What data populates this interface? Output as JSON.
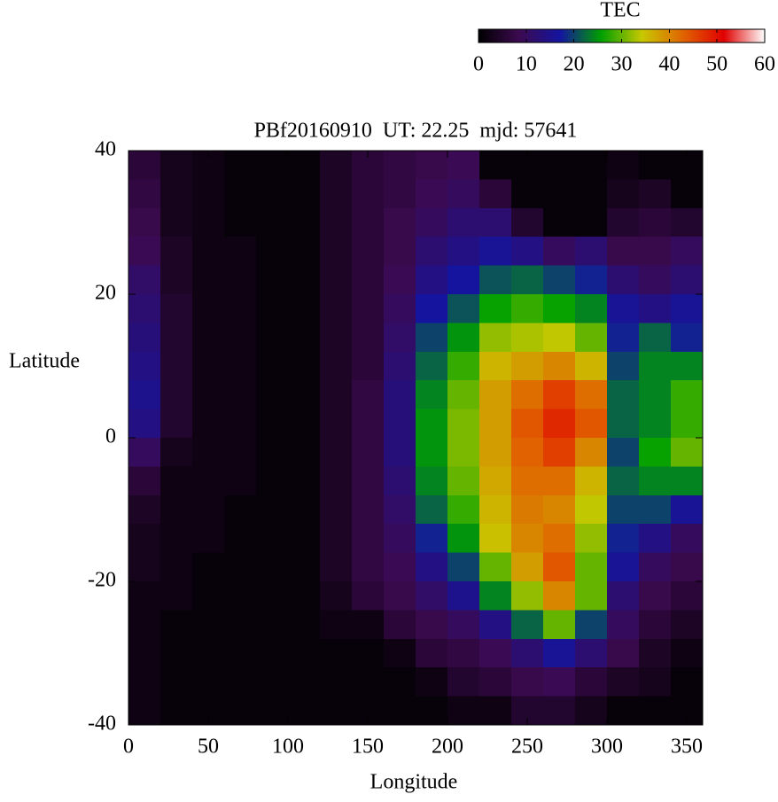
{
  "chart_data": {
    "type": "heatmap",
    "title": "PBf20160910  UT: 22.25  mjd: 57641",
    "x_label": "Longitude",
    "y_label": "Latitude",
    "colorbar_label": "TEC",
    "xlim": [
      0,
      360
    ],
    "xticks": [
      0,
      50,
      100,
      150,
      200,
      250,
      300,
      350
    ],
    "ylim": [
      -40,
      40
    ],
    "yticks": [
      -40,
      -20,
      0,
      20,
      40
    ],
    "zlim": [
      0,
      60
    ],
    "zticks": [
      0,
      10,
      20,
      30,
      40,
      50,
      60
    ],
    "colormap": [
      "#000000",
      "#3c0a50",
      "#1414a0",
      "#00a000",
      "#c8c800",
      "#e06400",
      "#e00000",
      "#ffffff"
    ],
    "x": [
      10,
      30,
      50,
      70,
      90,
      110,
      130,
      150,
      170,
      190,
      210,
      230,
      250,
      270,
      290,
      310,
      330,
      350
    ],
    "y": [
      38,
      34,
      30,
      26,
      22,
      18,
      14,
      10,
      6,
      2,
      -2,
      -6,
      -10,
      -14,
      -18,
      -22,
      -26,
      -30,
      -34,
      -38
    ],
    "z": [
      [
        6,
        3,
        2,
        1,
        1,
        1,
        4,
        6,
        7,
        8,
        9,
        1,
        1,
        1,
        1,
        2,
        1,
        1
      ],
      [
        7,
        3,
        2,
        1,
        1,
        1,
        4,
        6,
        7,
        9,
        10,
        6,
        1,
        1,
        1,
        3,
        4,
        1
      ],
      [
        8,
        3,
        2,
        1,
        1,
        1,
        4,
        6,
        8,
        10,
        12,
        12,
        5,
        1,
        1,
        5,
        6,
        5
      ],
      [
        9,
        4,
        2,
        2,
        1,
        1,
        4,
        6,
        8,
        12,
        14,
        16,
        14,
        10,
        12,
        8,
        8,
        10
      ],
      [
        11,
        4,
        2,
        2,
        1,
        1,
        4,
        6,
        9,
        14,
        17,
        21,
        22,
        20,
        18,
        12,
        10,
        12
      ],
      [
        12,
        5,
        2,
        2,
        1,
        1,
        4,
        6,
        10,
        17,
        21,
        26,
        28,
        26,
        24,
        16,
        14,
        16
      ],
      [
        13,
        5,
        2,
        2,
        1,
        1,
        4,
        6,
        11,
        20,
        25,
        32,
        33,
        34,
        30,
        18,
        22,
        18
      ],
      [
        14,
        5,
        2,
        2,
        1,
        1,
        4,
        6,
        12,
        22,
        28,
        36,
        38,
        40,
        36,
        20,
        24,
        24
      ],
      [
        15,
        5,
        2,
        2,
        1,
        1,
        4,
        7,
        13,
        24,
        30,
        38,
        42,
        46,
        42,
        22,
        24,
        28
      ],
      [
        14,
        5,
        2,
        2,
        1,
        1,
        4,
        7,
        13,
        25,
        31,
        38,
        44,
        48,
        44,
        22,
        24,
        28
      ],
      [
        10,
        3,
        2,
        2,
        1,
        1,
        4,
        7,
        13,
        25,
        31,
        38,
        43,
        46,
        40,
        20,
        26,
        30
      ],
      [
        6,
        2,
        2,
        2,
        1,
        1,
        4,
        7,
        12,
        24,
        30,
        37,
        42,
        42,
        36,
        22,
        24,
        24
      ],
      [
        4,
        2,
        2,
        1,
        1,
        1,
        4,
        7,
        11,
        22,
        28,
        36,
        41,
        40,
        34,
        20,
        20,
        16
      ],
      [
        3,
        2,
        2,
        1,
        1,
        1,
        4,
        7,
        10,
        18,
        25,
        35,
        40,
        42,
        32,
        18,
        14,
        10
      ],
      [
        3,
        2,
        1,
        1,
        1,
        1,
        4,
        7,
        9,
        14,
        20,
        30,
        38,
        44,
        30,
        16,
        10,
        8
      ],
      [
        2,
        2,
        1,
        1,
        1,
        1,
        3,
        6,
        8,
        11,
        15,
        24,
        32,
        40,
        30,
        12,
        8,
        6
      ],
      [
        2,
        1,
        1,
        1,
        1,
        1,
        2,
        2,
        6,
        8,
        10,
        14,
        22,
        30,
        20,
        10,
        6,
        4
      ],
      [
        2,
        1,
        1,
        1,
        1,
        1,
        1,
        1,
        2,
        6,
        7,
        9,
        12,
        16,
        12,
        8,
        4,
        2
      ],
      [
        2,
        1,
        1,
        1,
        1,
        1,
        1,
        1,
        1,
        2,
        5,
        6,
        8,
        9,
        6,
        4,
        3,
        1
      ],
      [
        2,
        1,
        1,
        1,
        1,
        1,
        1,
        1,
        1,
        1,
        2,
        2,
        5,
        5,
        3,
        1,
        1,
        1
      ]
    ]
  }
}
